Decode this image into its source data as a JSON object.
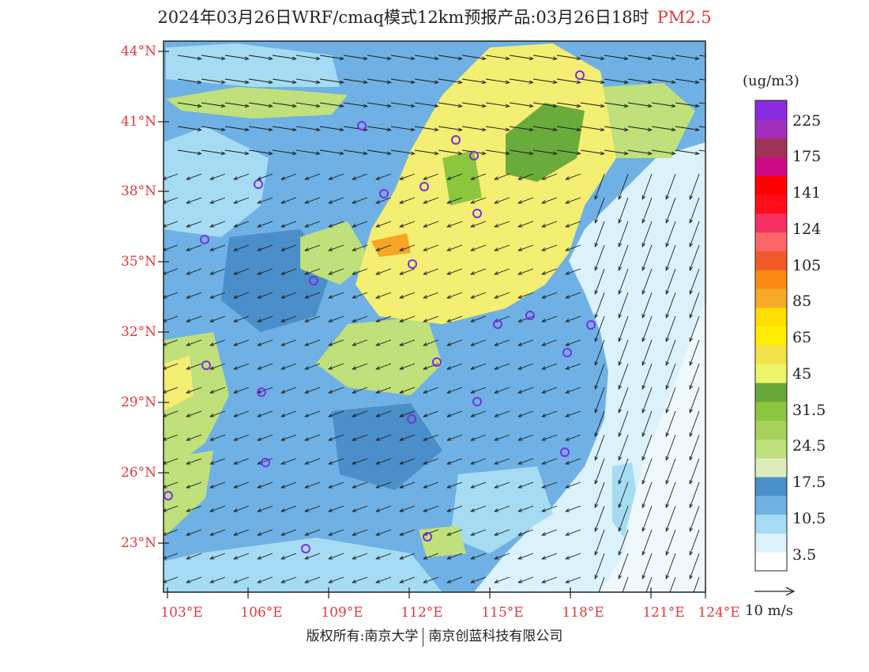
{
  "header": {
    "title": "2024年03月26日WRF/cmaq模式12km预报产品:03月26日18时",
    "pollutant": "PM2.5"
  },
  "map": {
    "lat_labels": [
      "44°N",
      "41°N",
      "38°N",
      "35°N",
      "32°N",
      "29°N",
      "26°N",
      "23°N"
    ],
    "lon_labels": [
      "103°E",
      "106°E",
      "109°E",
      "112°E",
      "115°E",
      "118°E",
      "121°E",
      "124°E"
    ],
    "colors": {
      "land_blue_light": "#a6dcf3",
      "land_blue_mid": "#5aa0d8",
      "land_blue_dark": "#3f86c8",
      "pale_blue": "#dcf2fb",
      "green_light": "#bfe07a",
      "green_dark": "#6aac3c",
      "yellow": "#f4ee72",
      "orange": "#f5a623",
      "station_ring": "#7a2fe0"
    }
  },
  "colorbar": {
    "unit": "(ug/m3)",
    "labels": [
      "225",
      "175",
      "141",
      "124",
      "105",
      "85",
      "65",
      "45",
      "31.5",
      "24.5",
      "17.5",
      "10.5",
      "3.5"
    ],
    "colors": [
      "#ffffff",
      "#dcf2fb",
      "#a6dcf3",
      "#6fb1e4",
      "#4a8fc9",
      "#dcedbb",
      "#bfe07a",
      "#a9d25a",
      "#8cc63f",
      "#68a737",
      "#eef56a",
      "#f4e24a",
      "#ffef00",
      "#fedd03",
      "#f7a928",
      "#fa8a13",
      "#ef5a28",
      "#fb6767",
      "#f43160",
      "#ff0d1a",
      "#ff0000",
      "#cc0a86",
      "#a03257",
      "#a22ebe",
      "#8a2be2"
    ]
  },
  "wind_reference": {
    "label": "10 m/s"
  },
  "footer": {
    "left": "版权所有:南京大学",
    "right": "南京创蓝科技有限公司"
  }
}
